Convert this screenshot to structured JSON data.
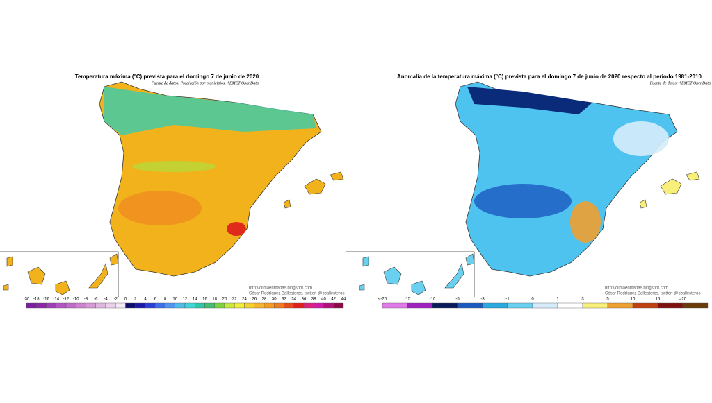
{
  "left": {
    "title": "Temperatura máxima (°C) prevista para el domingo 7 de junio de 2020",
    "source": "Fuente de datos: Predicción por municipios. AEMET OpenData",
    "credit_url": "http://climaenmapas.blogspot.com",
    "credit_author": "César Rodríguez Ballesteros. twitter: @cballesteros",
    "legend_labels": [
      "-30",
      "-18",
      "-16",
      "-14",
      "-12",
      "-10",
      "-8",
      "-6",
      "-4",
      "-2",
      "0",
      "2",
      "4",
      "6",
      "8",
      "10",
      "12",
      "14",
      "16",
      "18",
      "20",
      "22",
      "24",
      "26",
      "28",
      "30",
      "32",
      "34",
      "36",
      "38",
      "40",
      "42",
      "44"
    ],
    "legend_colors": [
      "#7b1fa2",
      "#8e24aa",
      "#a13cb8",
      "#b455c6",
      "#c06cc9",
      "#cc84cf",
      "#d59bd6",
      "#e0b6e0",
      "#ebd0ec",
      "#f5e8f5",
      "#0d0d6b",
      "#1a1aa6",
      "#2b3fd6",
      "#3f6fe8",
      "#4f95f0",
      "#4fbde8",
      "#3fd6d6",
      "#2ec7a8",
      "#3fbf6f",
      "#7fd23f",
      "#c8e83a",
      "#f0f03a",
      "#f5d22e",
      "#f5b52a",
      "#f59a22",
      "#f07a1e",
      "#e84a1a",
      "#e0201a",
      "#e0207a",
      "#d01aa8",
      "#b0127a",
      "#8a0a4a"
    ]
  },
  "right": {
    "title": "Anomalía de la temperatura máxima (°C) prevista para el domingo 7 de junio de 2020 respecto al periodo 1981-2010",
    "source": "Fuente de datos: AEMET OpenData",
    "credit_url": "http://climaenmapas.blogspot.com",
    "credit_author": "César Rodríguez Ballesteros. twitter: @cballesteros",
    "legend_labels": [
      "<-20",
      "-15",
      "-10",
      "-5",
      "-3",
      "-1",
      "0",
      "1",
      "3",
      "5",
      "10",
      "15",
      ">20"
    ],
    "legend_colors": [
      "#e07ae8",
      "#a020c0",
      "#0a1a5a",
      "#1a5ac0",
      "#2aa8e0",
      "#6ad0f0",
      "#d6ecfa",
      "#ffffff",
      "#f8ee7a",
      "#f0a030",
      "#c04010",
      "#801010",
      "#6a3a08"
    ]
  }
}
